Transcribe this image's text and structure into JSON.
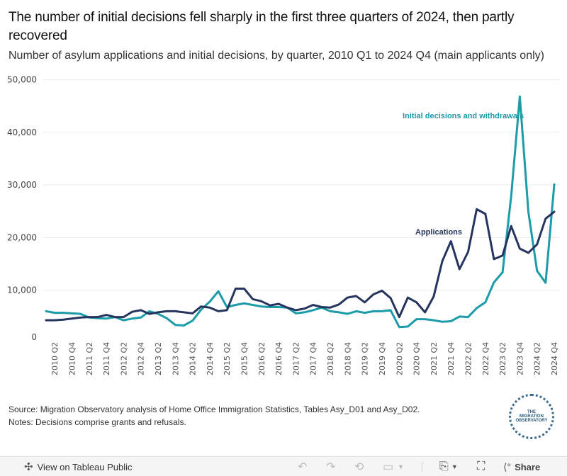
{
  "header": {
    "title": "The number of initial decisions fell sharply in the first three quarters of 2024, then partly recovered",
    "subtitle": "Number of asylum applications and initial decisions, by quarter, 2010 Q1 to 2024 Q4 (main applicants only)"
  },
  "chart_data": {
    "type": "line",
    "title": "The number of initial decisions fell sharply in the first three quarters of 2024, then partly recovered",
    "subtitle": "Number of asylum applications and initial decisions, by quarter, 2010 Q1 to 2024 Q4 (main applicants only)",
    "xlabel": "",
    "ylabel": "",
    "ylim": [
      0,
      50000
    ],
    "yticks": [
      0,
      10000,
      20000,
      30000,
      40000,
      50000
    ],
    "ytick_labels": [
      "0",
      "10,000",
      "20,000",
      "30,000",
      "40,000",
      "50,000"
    ],
    "grid": true,
    "legend": "inline-labels",
    "x": [
      "2010 Q1",
      "2010 Q2",
      "2010 Q3",
      "2010 Q4",
      "2011 Q1",
      "2011 Q2",
      "2011 Q3",
      "2011 Q4",
      "2012 Q1",
      "2012 Q2",
      "2012 Q3",
      "2012 Q4",
      "2013 Q1",
      "2013 Q2",
      "2013 Q3",
      "2013 Q4",
      "2014 Q1",
      "2014 Q2",
      "2014 Q3",
      "2014 Q4",
      "2015 Q1",
      "2015 Q2",
      "2015 Q3",
      "2015 Q4",
      "2016 Q1",
      "2016 Q2",
      "2016 Q3",
      "2016 Q4",
      "2017 Q1",
      "2017 Q2",
      "2017 Q3",
      "2017 Q4",
      "2018 Q1",
      "2018 Q2",
      "2018 Q3",
      "2018 Q4",
      "2019 Q1",
      "2019 Q2",
      "2019 Q3",
      "2019 Q4",
      "2020 Q1",
      "2020 Q2",
      "2020 Q3",
      "2020 Q4",
      "2021 Q1",
      "2021 Q2",
      "2021 Q3",
      "2021 Q4",
      "2022 Q1",
      "2022 Q2",
      "2022 Q3",
      "2022 Q4",
      "2023 Q1",
      "2023 Q2",
      "2023 Q3",
      "2023 Q4",
      "2024 Q1",
      "2024 Q2",
      "2024 Q3",
      "2024 Q4"
    ],
    "xtick_labels": [
      "2010 Q2",
      "2010 Q4",
      "2011 Q2",
      "2011 Q4",
      "2012 Q2",
      "2012 Q4",
      "2013 Q2",
      "2013 Q4",
      "2014 Q2",
      "2014 Q4",
      "2015 Q2",
      "2015 Q4",
      "2016 Q2",
      "2016 Q4",
      "2017 Q2",
      "2017 Q4",
      "2018 Q2",
      "2018 Q4",
      "2019 Q2",
      "2019 Q4",
      "2020 Q2",
      "2020 Q4",
      "2021 Q2",
      "2021 Q4",
      "2022 Q2",
      "2022 Q4",
      "2023 Q2",
      "2023 Q4",
      "2024 Q2",
      "2024 Q4"
    ],
    "series": [
      {
        "name": "Applications",
        "color": "#26355e",
        "values": [
          4300,
          4300,
          4400,
          4600,
          4800,
          4900,
          4900,
          5300,
          4900,
          4900,
          5900,
          6200,
          5500,
          5800,
          6000,
          6000,
          5800,
          5600,
          6900,
          6700,
          6000,
          6200,
          10300,
          10300,
          8300,
          7900,
          7100,
          7400,
          6700,
          6200,
          6500,
          7200,
          6800,
          6700,
          7300,
          8600,
          8900,
          7700,
          9200,
          9900,
          8500,
          4900,
          8600,
          7700,
          5800,
          8800,
          15500,
          19300,
          14000,
          17300,
          25400,
          24500,
          15900,
          16600,
          22200,
          17900,
          17100,
          18700,
          23600,
          24900
        ]
      },
      {
        "name": "Initial decisions and withdrawals",
        "color": "#1c9ba9",
        "values": [
          6000,
          5700,
          5700,
          5600,
          5500,
          4800,
          4700,
          4600,
          4900,
          4300,
          4600,
          4800,
          6000,
          5500,
          4700,
          3400,
          3300,
          4200,
          6300,
          7800,
          9800,
          6800,
          7200,
          7500,
          7200,
          6900,
          6800,
          6800,
          6700,
          5600,
          5800,
          6200,
          6700,
          6000,
          5800,
          5500,
          6000,
          5700,
          6000,
          6000,
          6200,
          3000,
          3100,
          4500,
          4500,
          4300,
          4000,
          4100,
          5000,
          4900,
          6600,
          7700,
          11500,
          13400,
          27800,
          46800,
          24900,
          13700,
          11400,
          30100
        ]
      }
    ],
    "annotations": [
      {
        "text": "Initial decisions and withdrawals",
        "series": "Initial decisions and withdrawals"
      },
      {
        "text": "Applications",
        "series": "Applications"
      }
    ]
  },
  "footer": {
    "source": "Source: Migration Observatory analysis of Home Office Immigration Statistics, Tables Asy_D01 and Asy_D02.",
    "notes": "Notes: Decisions comprise grants and refusals.",
    "logo_lines": [
      "THE",
      "MIGRATION",
      "OBSERVATORY"
    ]
  },
  "toolbar": {
    "view_label": "View on Tableau Public",
    "share_label": "Share",
    "icons": [
      "tableau-icon",
      "undo-icon",
      "redo-icon",
      "revert-icon",
      "pause-icon",
      "download-icon",
      "fullscreen-icon",
      "share-icon"
    ]
  }
}
